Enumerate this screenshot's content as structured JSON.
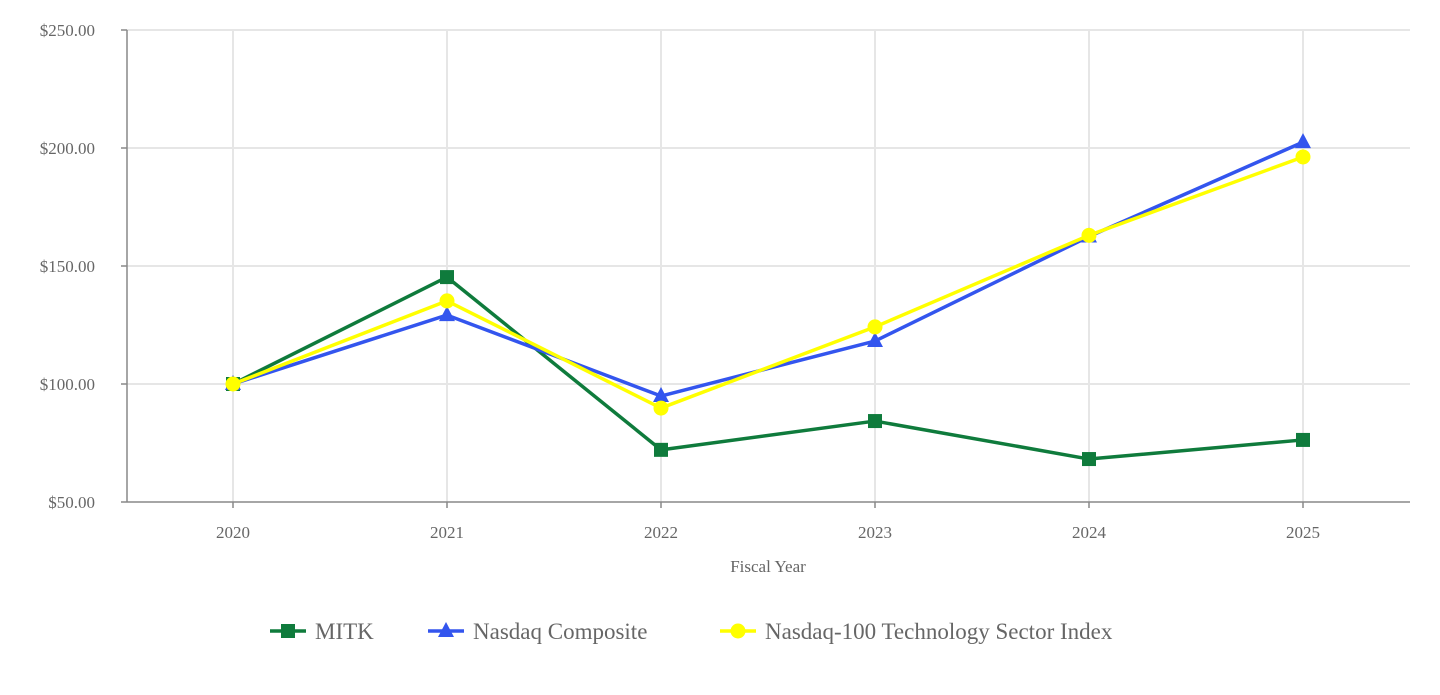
{
  "chart_data": {
    "type": "line",
    "title": "",
    "xlabel": "Fiscal Year",
    "ylabel": "",
    "categories": [
      "2020",
      "2021",
      "2022",
      "2023",
      "2024",
      "2025"
    ],
    "ylim": [
      50,
      250
    ],
    "yticks": [
      50,
      100,
      150,
      200,
      250
    ],
    "ytick_labels": [
      "$50.00",
      "$100.00",
      "$150.00",
      "$200.00",
      "$250.00"
    ],
    "grid": true,
    "legend_placement": "bottom",
    "series": [
      {
        "name": "MITK",
        "color": "#0f7b3c",
        "marker": "square",
        "values": [
          100,
          145.3,
          72.1,
          84.3,
          68.2,
          76.3
        ]
      },
      {
        "name": "Nasdaq Composite",
        "color": "#3355ee",
        "marker": "triangle",
        "values": [
          100,
          129.2,
          94.9,
          118.2,
          162.5,
          202.5
        ]
      },
      {
        "name": "Nasdaq-100 Technology Sector Index",
        "color": "#ffff00",
        "marker": "circle",
        "values": [
          100,
          135.2,
          89.8,
          124.2,
          163.0,
          196.2
        ]
      }
    ]
  }
}
